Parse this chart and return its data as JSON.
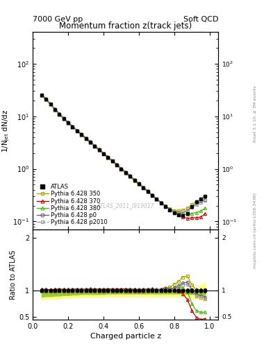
{
  "title_main": "Momentum fraction z(track jets)",
  "header_left": "7000 GeV pp",
  "header_right": "Soft QCD",
  "ylabel_main": "1/N$_{jet}$ dN/dz",
  "ylabel_ratio": "Ratio to ATLAS",
  "xlabel": "Charged particle z",
  "watermark": "ATLAS_2011_I919017",
  "rivet_text": "Rivet 3.1.10, ≥ 3M events",
  "mcplots_text": "mcplots.cern.ch [arXiv:1306.3436]",
  "z_values": [
    0.05,
    0.075,
    0.1,
    0.125,
    0.15,
    0.175,
    0.2,
    0.225,
    0.25,
    0.275,
    0.3,
    0.325,
    0.35,
    0.375,
    0.4,
    0.425,
    0.45,
    0.475,
    0.5,
    0.525,
    0.55,
    0.575,
    0.6,
    0.625,
    0.65,
    0.675,
    0.7,
    0.725,
    0.75,
    0.775,
    0.8,
    0.825,
    0.85,
    0.875,
    0.9,
    0.925,
    0.95,
    0.975
  ],
  "atlas_y": [
    25.0,
    21.0,
    17.0,
    13.5,
    11.0,
    9.0,
    7.5,
    6.3,
    5.3,
    4.5,
    3.8,
    3.2,
    2.7,
    2.3,
    1.95,
    1.65,
    1.4,
    1.2,
    1.0,
    0.85,
    0.72,
    0.61,
    0.52,
    0.44,
    0.37,
    0.31,
    0.265,
    0.225,
    0.19,
    0.165,
    0.145,
    0.135,
    0.13,
    0.14,
    0.19,
    0.24,
    0.27,
    0.3
  ],
  "atlas_yerr": [
    0.8,
    0.7,
    0.55,
    0.45,
    0.36,
    0.29,
    0.24,
    0.2,
    0.17,
    0.14,
    0.12,
    0.1,
    0.086,
    0.073,
    0.062,
    0.053,
    0.044,
    0.038,
    0.032,
    0.027,
    0.023,
    0.019,
    0.016,
    0.014,
    0.012,
    0.01,
    0.008,
    0.007,
    0.006,
    0.005,
    0.005,
    0.004,
    0.004,
    0.005,
    0.007,
    0.009,
    0.01,
    0.012
  ],
  "py350_y": [
    24.5,
    20.5,
    16.5,
    13.2,
    10.8,
    8.8,
    7.3,
    6.15,
    5.2,
    4.4,
    3.72,
    3.15,
    2.65,
    2.25,
    1.9,
    1.62,
    1.37,
    1.17,
    0.98,
    0.83,
    0.7,
    0.595,
    0.505,
    0.43,
    0.365,
    0.31,
    0.265,
    0.228,
    0.198,
    0.175,
    0.162,
    0.158,
    0.163,
    0.178,
    0.21,
    0.24,
    0.265,
    0.305
  ],
  "py370_y": [
    25.5,
    21.5,
    17.2,
    13.8,
    11.3,
    9.2,
    7.65,
    6.45,
    5.45,
    4.6,
    3.9,
    3.3,
    2.78,
    2.36,
    2.0,
    1.7,
    1.44,
    1.23,
    1.03,
    0.875,
    0.74,
    0.625,
    0.53,
    0.45,
    0.38,
    0.32,
    0.27,
    0.23,
    0.2,
    0.17,
    0.148,
    0.133,
    0.122,
    0.115,
    0.118,
    0.118,
    0.122,
    0.14
  ],
  "py380_y": [
    25.2,
    21.2,
    17.0,
    13.6,
    11.1,
    9.1,
    7.56,
    6.37,
    5.38,
    4.55,
    3.85,
    3.26,
    2.75,
    2.33,
    1.97,
    1.67,
    1.42,
    1.21,
    1.01,
    0.86,
    0.73,
    0.62,
    0.525,
    0.445,
    0.378,
    0.318,
    0.268,
    0.228,
    0.197,
    0.17,
    0.152,
    0.142,
    0.136,
    0.136,
    0.143,
    0.148,
    0.158,
    0.178
  ],
  "pyp0_y": [
    25.1,
    21.1,
    16.9,
    13.55,
    11.05,
    9.05,
    7.52,
    6.34,
    5.35,
    4.52,
    3.82,
    3.23,
    2.73,
    2.31,
    1.96,
    1.66,
    1.41,
    1.2,
    1.005,
    0.855,
    0.725,
    0.615,
    0.523,
    0.443,
    0.376,
    0.317,
    0.267,
    0.227,
    0.197,
    0.17,
    0.152,
    0.147,
    0.148,
    0.162,
    0.192,
    0.22,
    0.242,
    0.262
  ],
  "pyp2010_y": [
    24.8,
    20.8,
    16.7,
    13.3,
    10.85,
    8.85,
    7.35,
    6.18,
    5.22,
    4.42,
    3.74,
    3.17,
    2.67,
    2.27,
    1.92,
    1.63,
    1.38,
    1.18,
    0.992,
    0.843,
    0.713,
    0.603,
    0.512,
    0.433,
    0.367,
    0.31,
    0.261,
    0.222,
    0.192,
    0.166,
    0.149,
    0.143,
    0.144,
    0.156,
    0.186,
    0.213,
    0.233,
    0.253
  ],
  "colors": {
    "atlas": "#000000",
    "py350": "#aaaa00",
    "py370": "#cc0000",
    "py380": "#44bb00",
    "pyp0": "#666666",
    "pyp2010": "#999999"
  },
  "band_color_outer": "#ffff88",
  "band_color_inner": "#99cc33",
  "band_outer_lo": [
    0.82,
    0.84,
    0.84,
    0.84,
    0.85,
    0.85,
    0.86,
    0.86,
    0.86,
    0.87,
    0.87,
    0.87,
    0.87,
    0.87,
    0.87,
    0.88,
    0.88,
    0.88,
    0.88,
    0.88,
    0.88,
    0.88,
    0.88,
    0.88,
    0.88,
    0.88,
    0.88,
    0.88,
    0.88,
    0.88,
    0.88,
    0.88,
    0.88,
    0.88,
    0.85,
    0.85,
    0.82,
    0.8
  ],
  "band_outer_hi": [
    1.05,
    1.03,
    1.03,
    1.03,
    1.02,
    1.02,
    1.02,
    1.02,
    1.02,
    1.01,
    1.01,
    1.01,
    1.01,
    1.01,
    1.01,
    1.01,
    1.01,
    1.01,
    1.01,
    1.01,
    1.01,
    1.01,
    1.01,
    1.01,
    1.01,
    1.01,
    1.01,
    1.01,
    1.01,
    1.01,
    1.01,
    1.01,
    1.01,
    1.01,
    1.04,
    1.06,
    1.1,
    1.15
  ],
  "band_inner_lo": [
    0.88,
    0.89,
    0.89,
    0.9,
    0.9,
    0.91,
    0.91,
    0.92,
    0.92,
    0.93,
    0.93,
    0.93,
    0.93,
    0.93,
    0.93,
    0.94,
    0.94,
    0.94,
    0.94,
    0.94,
    0.94,
    0.94,
    0.94,
    0.94,
    0.94,
    0.94,
    0.94,
    0.94,
    0.94,
    0.94,
    0.94,
    0.94,
    0.94,
    0.94,
    0.93,
    0.93,
    0.91,
    0.9
  ],
  "band_inner_hi": [
    1.0,
    1.0,
    1.0,
    1.0,
    1.0,
    1.0,
    1.0,
    1.0,
    1.0,
    1.0,
    1.0,
    1.0,
    1.0,
    1.0,
    1.0,
    1.0,
    1.0,
    1.0,
    1.0,
    1.0,
    1.0,
    1.0,
    1.0,
    1.0,
    1.0,
    1.0,
    1.0,
    1.0,
    1.0,
    1.0,
    1.0,
    1.0,
    1.0,
    1.0,
    1.0,
    1.0,
    1.0,
    1.0
  ],
  "ylim_main": [
    0.07,
    400
  ],
  "ylim_ratio": [
    0.45,
    2.15
  ],
  "xlim": [
    0.0,
    1.05
  ]
}
